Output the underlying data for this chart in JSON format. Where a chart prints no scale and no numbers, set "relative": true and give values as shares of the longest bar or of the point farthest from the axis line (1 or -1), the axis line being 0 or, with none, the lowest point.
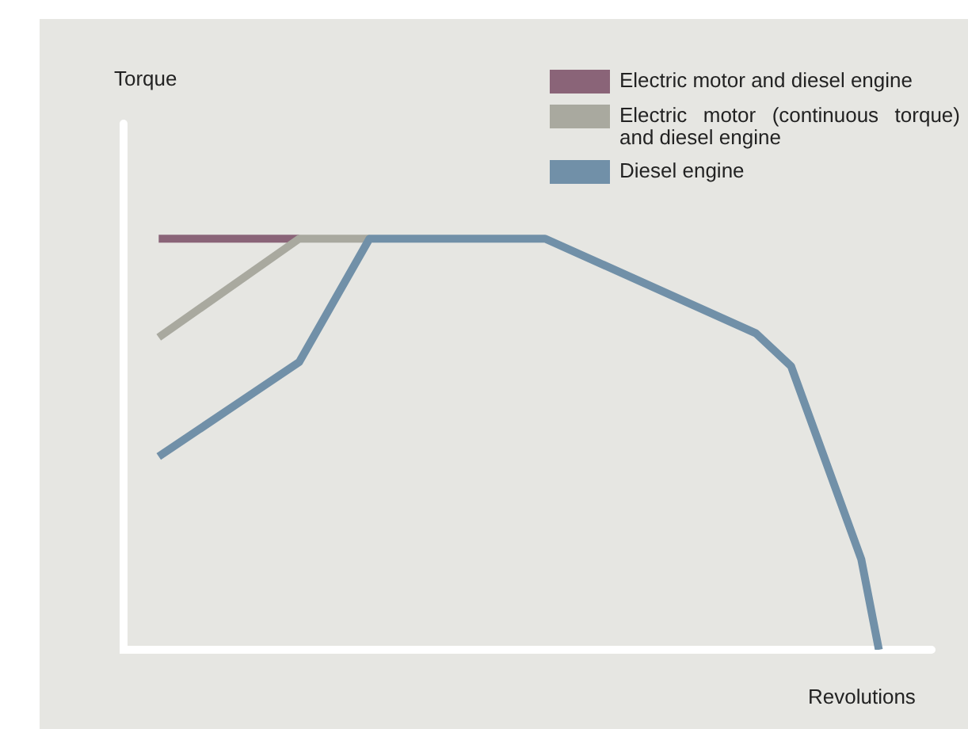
{
  "chart_data": {
    "type": "line",
    "relative": true,
    "xlabel": "Revolutions",
    "annotations": [
      "Torque"
    ],
    "legend": "top right",
    "marker": "none",
    "line_style": "solid",
    "categories": [
      null,
      null,
      null,
      null,
      null,
      null,
      null,
      null,
      null,
      null,
      null,
      null,
      null,
      null,
      null,
      null,
      null,
      null,
      null,
      null,
      null,
      null,
      null,
      null,
      null,
      null,
      null,
      null,
      null,
      null,
      null,
      null,
      null,
      null,
      null,
      null,
      null,
      null,
      null,
      null,
      null,
      null,
      null,
      null,
      null,
      null,
      null
    ],
    "series": [
      {
        "name": "Electric motor and diesel engine",
        "color": "#8a6478",
        "values": [
          null,
          null,
          1,
          null,
          null,
          null,
          null,
          null,
          null,
          null,
          1,
          null,
          null,
          null,
          null,
          null,
          null,
          null,
          null,
          null,
          null,
          null,
          null,
          null,
          null,
          null,
          null,
          null,
          null,
          null,
          null,
          null,
          null,
          null,
          null,
          null,
          null,
          null,
          null,
          null,
          null,
          null,
          null,
          null,
          null,
          null,
          null
        ]
      },
      {
        "name": "Electric motor (continuous torque) and diesel engine",
        "color": "#a9a99f",
        "values": [
          null,
          null,
          0.76,
          null,
          null,
          null,
          null,
          null,
          null,
          null,
          1,
          null,
          null,
          null,
          1,
          null,
          null,
          null,
          null,
          null,
          null,
          null,
          null,
          null,
          null,
          null,
          null,
          null,
          null,
          null,
          null,
          null,
          null,
          null,
          null,
          null,
          null,
          null,
          null,
          null,
          null,
          null,
          null,
          null,
          null,
          null,
          null
        ]
      },
      {
        "name": "Diesel engine",
        "color": "#7190a8",
        "values": [
          null,
          null,
          0.47,
          null,
          null,
          null,
          null,
          null,
          null,
          null,
          0.7,
          null,
          null,
          null,
          1,
          null,
          null,
          null,
          null,
          null,
          null,
          null,
          null,
          null,
          1,
          null,
          null,
          null,
          null,
          null,
          null,
          null,
          null,
          null,
          null,
          null,
          0.77,
          null,
          0.69,
          null,
          null,
          null,
          0.22,
          0,
          null,
          null,
          null
        ]
      }
    ]
  }
}
